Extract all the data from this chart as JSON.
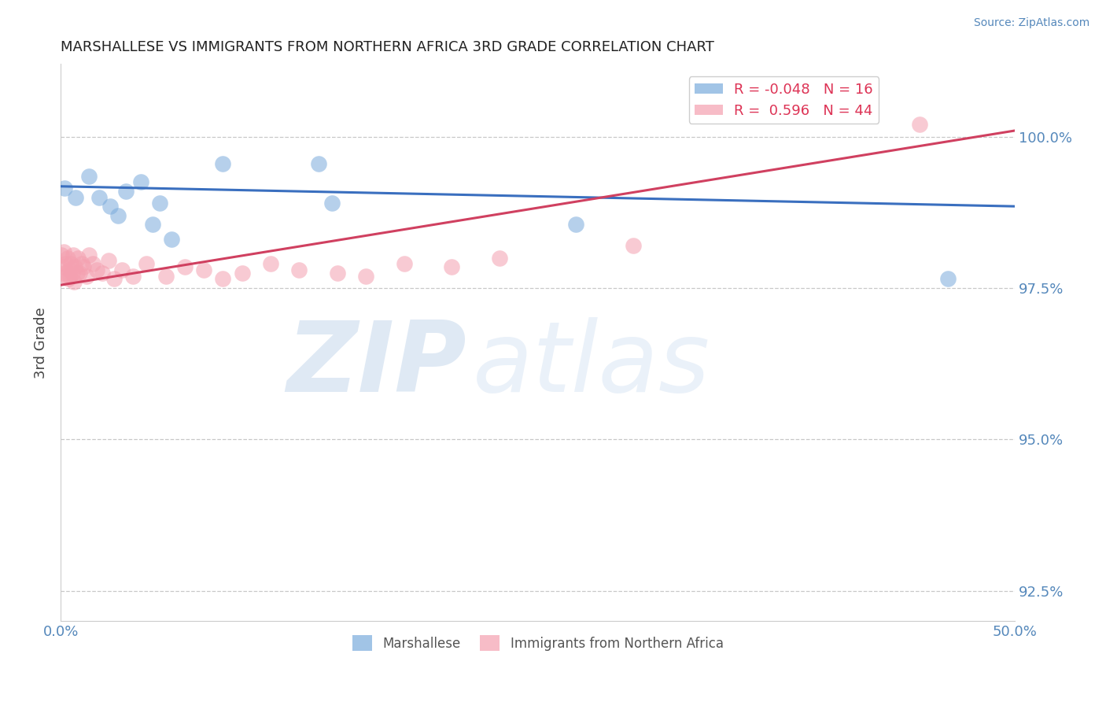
{
  "title": "MARSHALLESE VS IMMIGRANTS FROM NORTHERN AFRICA 3RD GRADE CORRELATION CHART",
  "source": "Source: ZipAtlas.com",
  "ylabel": "3rd Grade",
  "xlim": [
    0.0,
    50.0
  ],
  "ylim": [
    92.0,
    101.2
  ],
  "yticks": [
    92.5,
    95.0,
    97.5,
    100.0
  ],
  "xticks": [
    0.0,
    12.5,
    25.0,
    37.5,
    50.0
  ],
  "xtick_labels": [
    "0.0%",
    "",
    "",
    "",
    "50.0%"
  ],
  "ytick_labels": [
    "92.5%",
    "95.0%",
    "97.5%",
    "100.0%"
  ],
  "marshallese_R": -0.048,
  "marshallese_N": 16,
  "northern_africa_R": 0.596,
  "northern_africa_N": 44,
  "marshallese_color": "#7aabdc",
  "northern_africa_color": "#f4a0b0",
  "trendline_blue": "#3a6fbf",
  "trendline_pink": "#d04060",
  "marshallese_x": [
    0.2,
    1.5,
    2.0,
    2.6,
    3.0,
    3.4,
    4.2,
    4.8,
    5.2,
    5.8,
    8.5,
    13.5,
    14.2,
    27.0,
    46.5,
    0.8
  ],
  "marshallese_y": [
    99.15,
    99.35,
    99.0,
    98.85,
    98.7,
    99.1,
    99.25,
    98.55,
    98.9,
    98.3,
    99.55,
    99.55,
    98.9,
    98.55,
    97.65,
    99.0
  ],
  "northern_africa_x": [
    0.05,
    0.1,
    0.15,
    0.2,
    0.25,
    0.3,
    0.35,
    0.4,
    0.45,
    0.5,
    0.55,
    0.6,
    0.65,
    0.7,
    0.75,
    0.85,
    0.9,
    1.0,
    1.1,
    1.2,
    1.35,
    1.5,
    1.7,
    1.9,
    2.2,
    2.5,
    2.8,
    3.2,
    3.8,
    4.5,
    5.5,
    6.5,
    7.5,
    8.5,
    9.5,
    11.0,
    12.5,
    14.5,
    16.0,
    18.0,
    20.5,
    23.0,
    30.0,
    45.0
  ],
  "northern_africa_y": [
    98.05,
    97.85,
    98.1,
    97.75,
    97.9,
    97.7,
    98.0,
    97.65,
    97.8,
    97.7,
    97.9,
    97.75,
    98.05,
    97.6,
    97.85,
    97.75,
    98.0,
    97.75,
    97.9,
    97.85,
    97.7,
    98.05,
    97.9,
    97.8,
    97.75,
    97.95,
    97.65,
    97.8,
    97.7,
    97.9,
    97.7,
    97.85,
    97.8,
    97.65,
    97.75,
    97.9,
    97.8,
    97.75,
    97.7,
    97.9,
    97.85,
    98.0,
    98.2,
    100.2
  ],
  "blue_line_x0": 0.0,
  "blue_line_y0": 99.18,
  "blue_line_x1": 50.0,
  "blue_line_y1": 98.85,
  "pink_line_x0": 0.0,
  "pink_line_y0": 97.55,
  "pink_line_x1": 50.0,
  "pink_line_y1": 100.1
}
